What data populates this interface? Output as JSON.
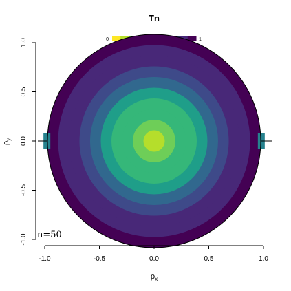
{
  "chart_data": {
    "type": "heatmap",
    "title": "Tn",
    "xlabel": {
      "main": "ρ",
      "sub": "x"
    },
    "ylabel": {
      "main": "ρ",
      "sub": "y"
    },
    "xlim": [
      -1.05,
      1.05
    ],
    "ylim": [
      -1.0,
      1.0
    ],
    "x_ticks": [
      -1.0,
      -0.5,
      0.0,
      0.5,
      1.0
    ],
    "x_tick_labels": [
      "-1.0",
      "-0.5",
      "0.0",
      "0.5",
      "1.0"
    ],
    "y_ticks": [
      -1.0,
      -0.5,
      0.0,
      0.5,
      1.0
    ],
    "y_tick_labels": [
      "-1.0",
      "-0.5",
      "0.0",
      "0.5",
      "1.0"
    ],
    "colorbar": {
      "min": 0,
      "max": 1,
      "min_label": "0",
      "max_label": "1",
      "palette": "viridis",
      "orientation": "horizontal",
      "position": "top"
    },
    "annotation": "n=50",
    "domain_shape": "unit disk",
    "grid": false,
    "radial_bins": [
      0.0,
      0.1,
      0.2,
      0.3,
      0.4,
      0.5,
      0.6,
      0.7,
      0.8,
      0.9,
      1.0
    ],
    "radial_values": [
      0.15,
      0.2,
      0.28,
      0.38,
      0.5,
      0.62,
      0.74,
      0.84,
      0.92,
      0.97
    ],
    "edge_patches": [
      {
        "x": -0.98,
        "y": 0.0,
        "value": 0.6
      },
      {
        "x": 0.98,
        "y": 0.0,
        "value": 0.6
      }
    ],
    "colors": {
      "viridis": [
        "#440154",
        "#482878",
        "#3e4a89",
        "#31688e",
        "#26828e",
        "#1f9e89",
        "#35b779",
        "#6ece58",
        "#b5de2b",
        "#fde725"
      ]
    }
  }
}
